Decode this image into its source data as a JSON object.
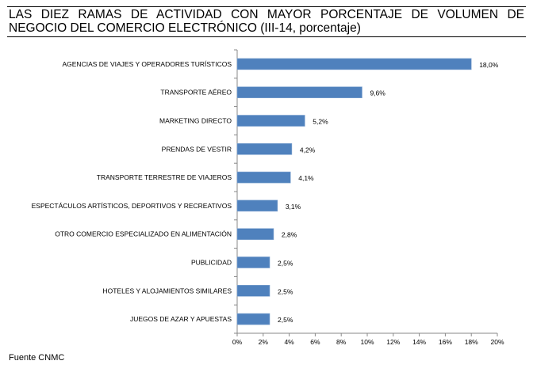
{
  "chart_data": {
    "type": "bar",
    "orientation": "horizontal",
    "title": "LAS DIEZ RAMAS DE ACTIVIDAD CON MAYOR PORCENTAJE DE VOLUMEN DE NEGOCIO DEL COMERCIO ELECTRÓNICO (III-14, porcentaje)",
    "categories": [
      "AGENCIAS DE VIAJES Y OPERADORES TURÍSTICOS",
      "TRANSPORTE AÉREO",
      "MARKETING DIRECTO",
      "PRENDAS DE VESTIR",
      "TRANSPORTE TERRESTRE DE VIAJEROS",
      "ESPECTÁCULOS ARTÍSTICOS, DEPORTIVOS Y RECREATIVOS",
      "OTRO COMERCIO ESPECIALIZADO EN ALIMENTACIÓN",
      "PUBLICIDAD",
      "HOTELES  Y ALOJAMIENTOS SIMILARES",
      "JUEGOS DE AZAR Y APUESTAS"
    ],
    "values": [
      18.0,
      9.6,
      5.2,
      4.2,
      4.1,
      3.1,
      2.8,
      2.5,
      2.5,
      2.5
    ],
    "data_labels": [
      "18,0%",
      "9,6%",
      "5,2%",
      "4,2%",
      "4,1%",
      "3,1%",
      "2,8%",
      "2,5%",
      "2,5%",
      "2,5%"
    ],
    "xlim": [
      0,
      20
    ],
    "x_ticks": [
      "0%",
      "2%",
      "4%",
      "6%",
      "8%",
      "10%",
      "12%",
      "14%",
      "16%",
      "18%",
      "20%"
    ],
    "xlabel": "",
    "ylabel": "",
    "grid": false,
    "legend": "none",
    "bar_color": "#4F81BD",
    "source": "Fuente CNMC"
  }
}
